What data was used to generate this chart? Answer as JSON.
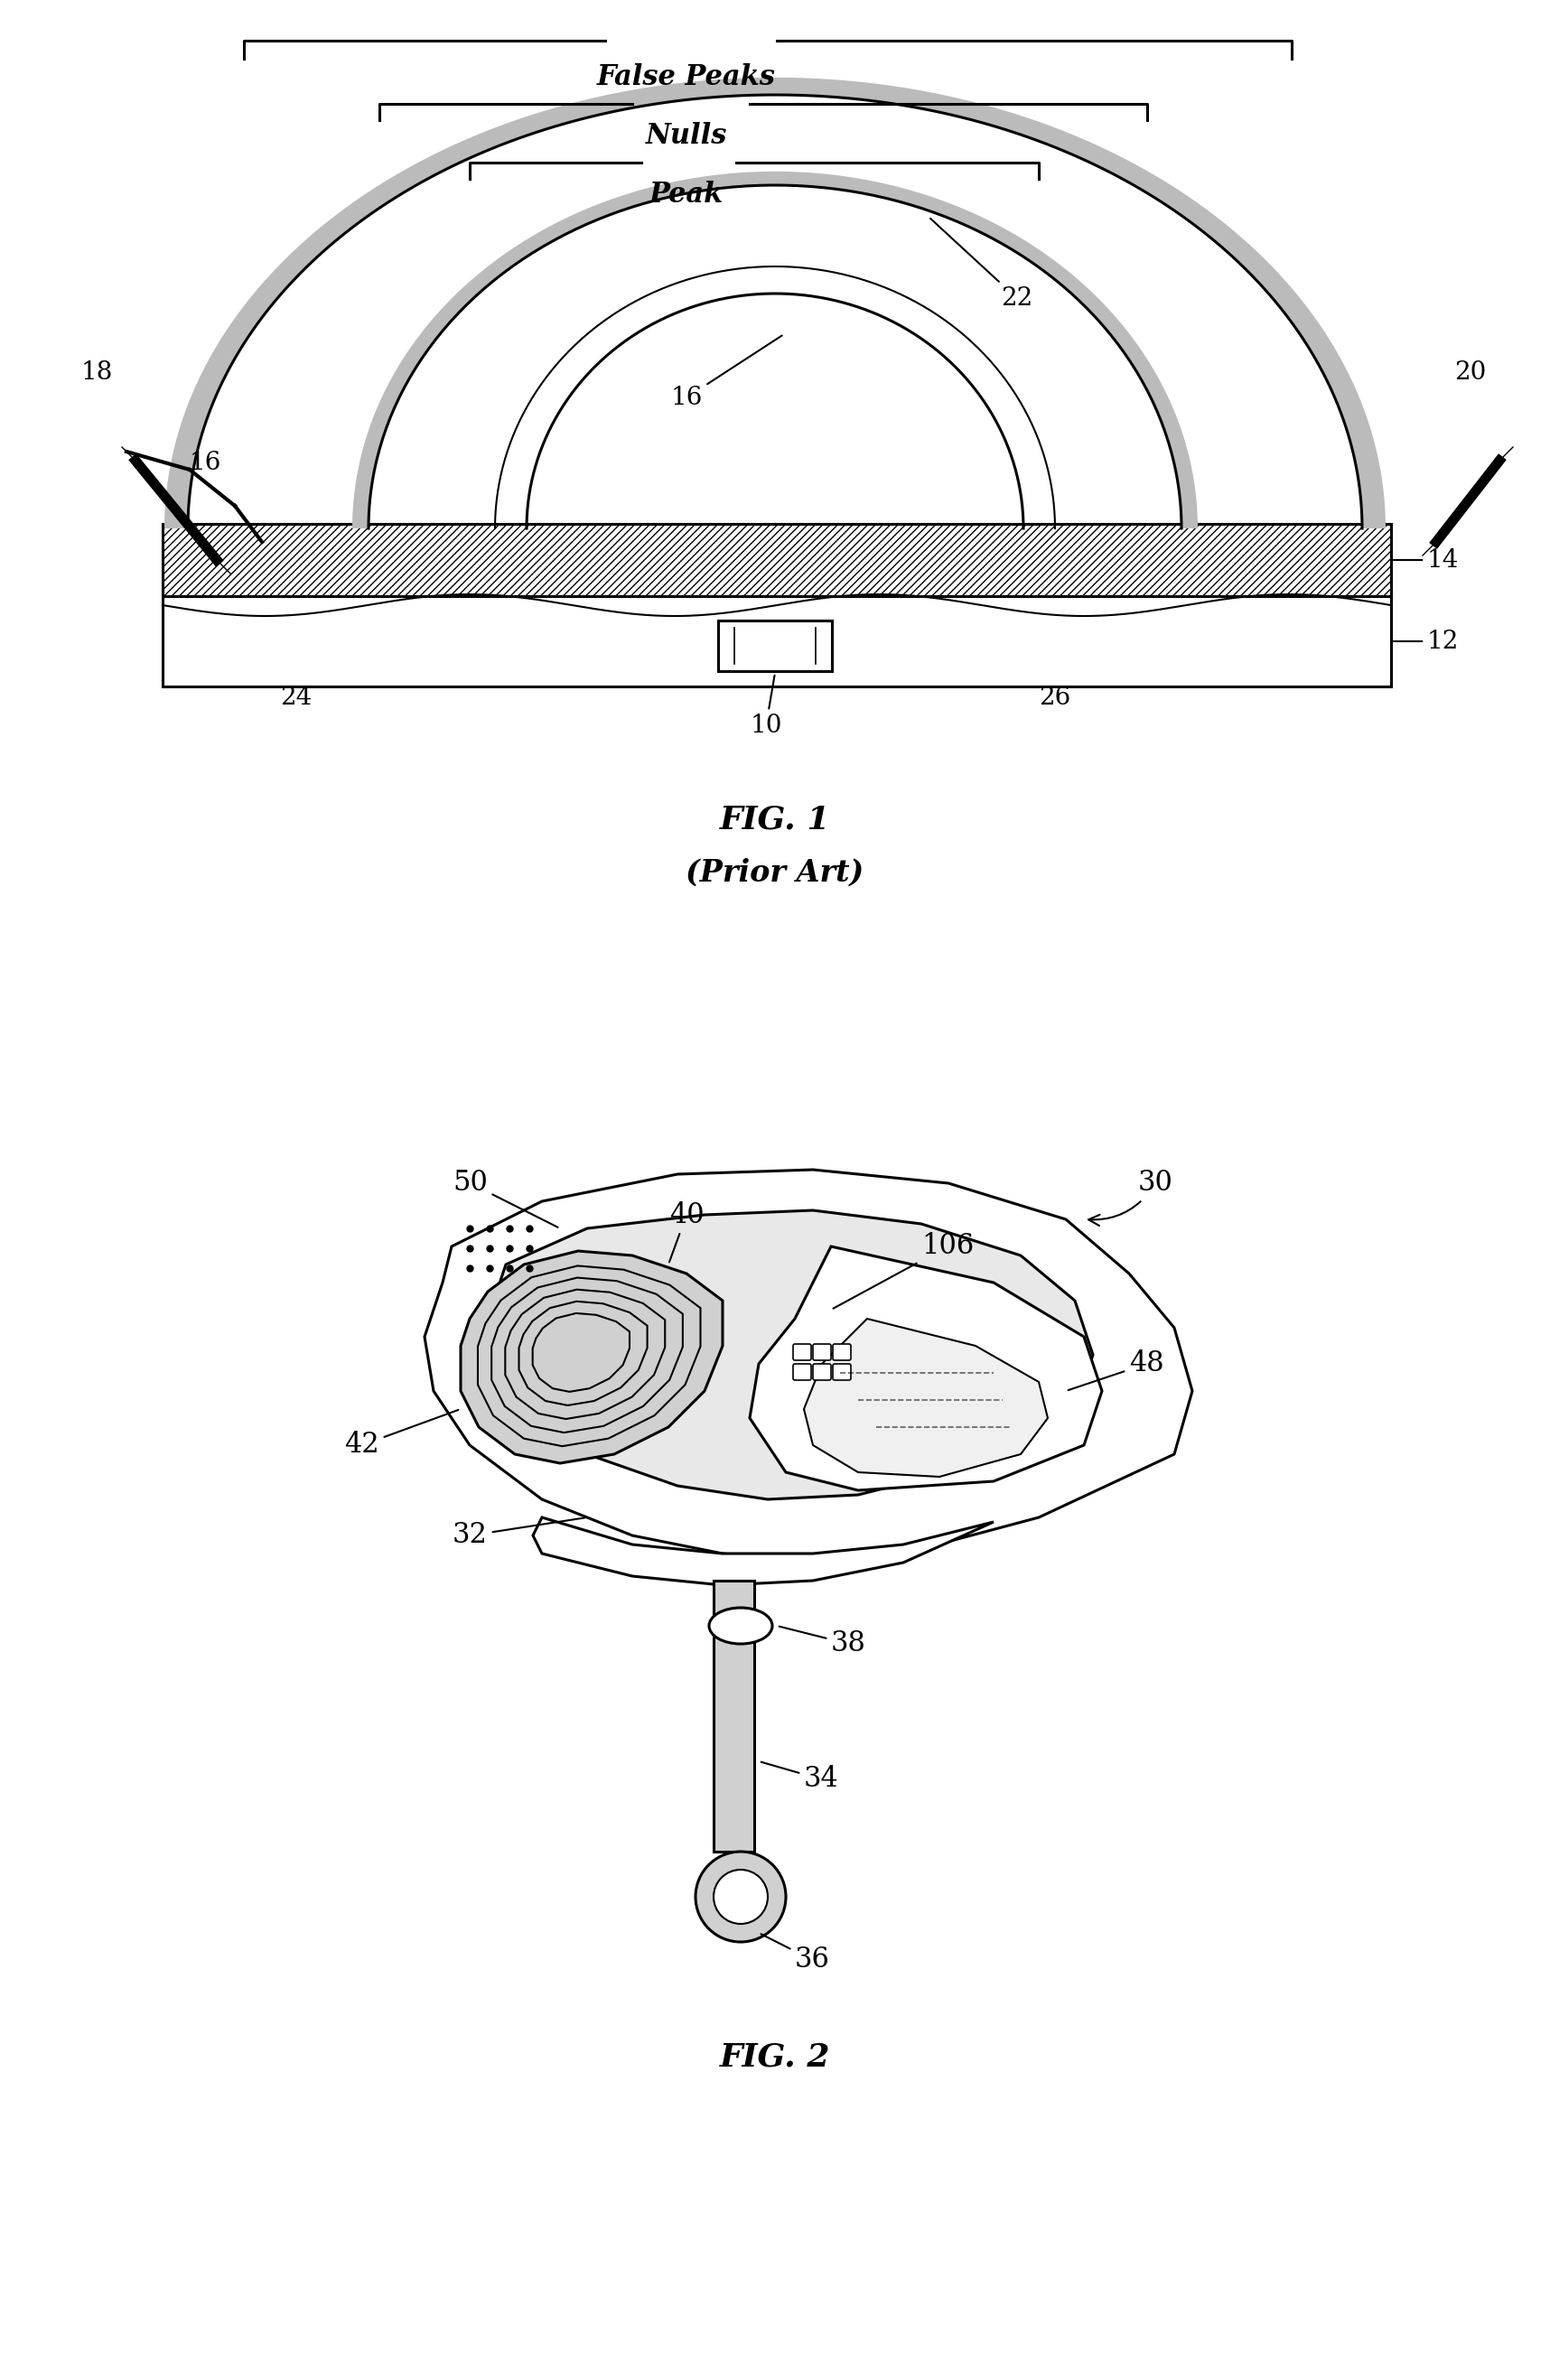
{
  "fig_width": 17.16,
  "fig_height": 26.35,
  "bg_color": "#ffffff",
  "fig1": {
    "title": "FIG. 1",
    "subtitle": "(Prior Art)",
    "labels": {
      "false_peaks": "False Peaks",
      "nulls": "Nulls",
      "peak": "Peak"
    },
    "ref_nums": [
      "10",
      "12",
      "14",
      "16",
      "16",
      "18",
      "20",
      "22",
      "24",
      "26"
    ]
  },
  "fig2": {
    "title": "FIG. 2",
    "ref_nums": [
      "30",
      "32",
      "34",
      "36",
      "38",
      "40",
      "42",
      "48",
      "50",
      "106"
    ]
  }
}
